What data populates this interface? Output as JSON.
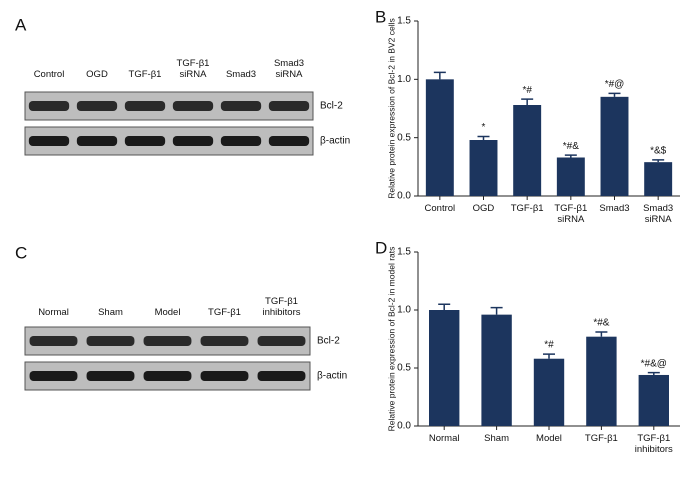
{
  "blots": [
    {
      "label": "A",
      "lanes": [
        "Control",
        "OGD",
        "TGF-β1",
        "TGF-β1 siRNA",
        "Smad3",
        "Smad3 siRNA"
      ],
      "rows": [
        "Bcl-2",
        "β-actin"
      ]
    },
    {
      "label": "C",
      "lanes": [
        "Normal",
        "Sham",
        "Model",
        "TGF-β1",
        "TGF-β1 inhibitors"
      ],
      "rows": [
        "Bcl-2",
        "β-actin"
      ]
    }
  ],
  "chart_data": [
    {
      "type": "bar",
      "label": "B",
      "y_label": "Relative protein expression of Bcl-2 in BV2 cells",
      "color": "#1c355e",
      "categories": [
        "Control",
        "OGD",
        "TGF-β1",
        "TGF-β1 siRNA",
        "Smad3",
        "Smad3 siRNA"
      ],
      "values": [
        1.0,
        0.48,
        0.78,
        0.33,
        0.85,
        0.29
      ],
      "errors": [
        0.06,
        0.03,
        0.05,
        0.02,
        0.03,
        0.02
      ],
      "annotations": [
        null,
        "*",
        "*#",
        "*#&",
        "*#@",
        "*&$"
      ],
      "ylim": [
        0,
        1.5
      ],
      "yticks": [
        {
          "value": 0,
          "label": "0.0"
        },
        0.5,
        {
          "value": 1,
          "label": "1.0"
        },
        1.5
      ]
    },
    {
      "type": "bar",
      "label": "D",
      "y_label": "Relative protein expression of Bcl-2 in model rats",
      "color": "#1c355e",
      "categories": [
        "Normal",
        "Sham",
        "Model",
        "TGF-β1",
        "TGF-β1 inhibitors"
      ],
      "values": [
        1.0,
        0.96,
        0.58,
        0.77,
        0.44
      ],
      "errors": [
        0.05,
        0.06,
        0.04,
        0.04,
        0.02
      ],
      "annotations": [
        null,
        null,
        "*#",
        "*#&",
        "*#&@"
      ],
      "ylim": [
        0,
        1.5
      ],
      "yticks": [
        {
          "value": 0,
          "label": "0.0"
        },
        0.5,
        {
          "value": 1,
          "label": "1.0"
        },
        1.5
      ]
    }
  ]
}
